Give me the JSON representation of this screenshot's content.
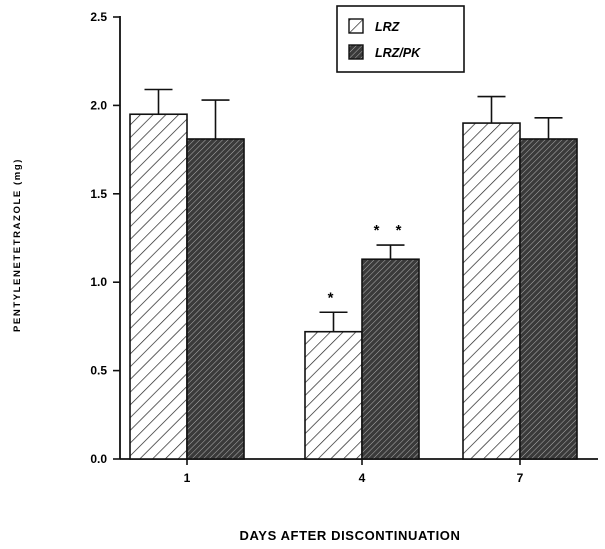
{
  "chart_data": {
    "type": "bar",
    "title": "",
    "xlabel": "DAYS AFTER DISCONTINUATION",
    "ylabel": "PENTYLENETETRAZOLE (mg)",
    "ylim": [
      0,
      2.5
    ],
    "yticks": [
      "0.0",
      "0.5",
      "1.0",
      "1.5",
      "2.0",
      "2.5"
    ],
    "categories": [
      "1",
      "4",
      "7"
    ],
    "series": [
      {
        "name": "LRZ",
        "values": [
          1.95,
          0.72,
          1.9
        ],
        "errors": [
          0.14,
          0.11,
          0.15
        ],
        "annotations": [
          "",
          "*",
          ""
        ],
        "fill": "light-hatch"
      },
      {
        "name": "LRZ/PK",
        "values": [
          1.81,
          1.13,
          1.81
        ],
        "errors": [
          0.22,
          0.08,
          0.12
        ],
        "annotations": [
          "",
          "* *",
          ""
        ],
        "fill": "dark-hatch"
      }
    ],
    "legend_position": "top-right",
    "grid": false
  }
}
